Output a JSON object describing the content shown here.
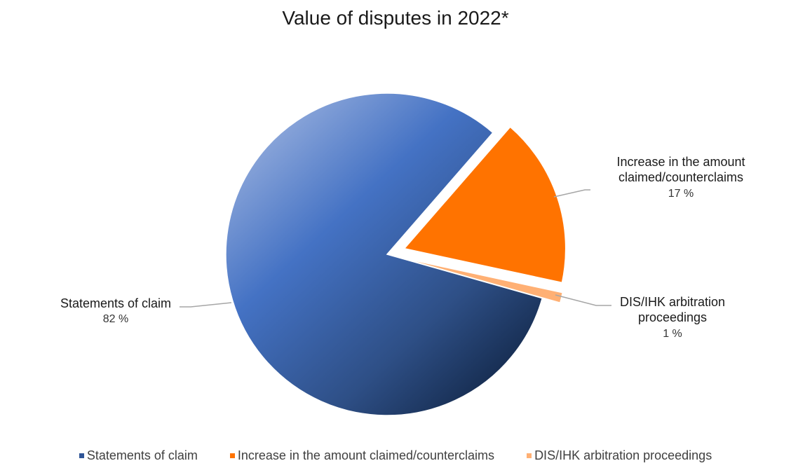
{
  "chart_data": {
    "type": "pie",
    "title": "Value of disputes in 2022*",
    "slices": [
      {
        "label": "Statements of claim",
        "value": 82,
        "value_label": "82 %",
        "color": "#4472c4"
      },
      {
        "label": "Increase in the amount claimed/counterclaims",
        "label_lines": [
          "Increase in the amount",
          "claimed/counterclaims"
        ],
        "value": 17,
        "value_label": "17 %",
        "color": "#ff7300"
      },
      {
        "label": "DIS/IHK arbitration proceedings",
        "label_lines": [
          "DIS/IHK arbitration",
          "proceedings"
        ],
        "value": 1,
        "value_label": "1 %",
        "color": "#ffb074"
      }
    ],
    "legend_position": "bottom"
  }
}
